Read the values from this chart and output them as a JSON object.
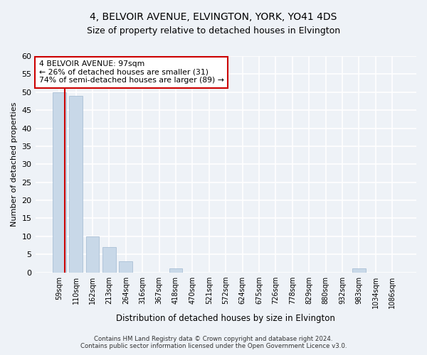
{
  "title": "4, BELVOIR AVENUE, ELVINGTON, YORK, YO41 4DS",
  "subtitle": "Size of property relative to detached houses in Elvington",
  "xlabel": "Distribution of detached houses by size in Elvington",
  "ylabel": "Number of detached properties",
  "categories": [
    "59sqm",
    "110sqm",
    "162sqm",
    "213sqm",
    "264sqm",
    "316sqm",
    "367sqm",
    "418sqm",
    "470sqm",
    "521sqm",
    "572sqm",
    "624sqm",
    "675sqm",
    "726sqm",
    "778sqm",
    "829sqm",
    "880sqm",
    "932sqm",
    "983sqm",
    "1034sqm",
    "1086sqm"
  ],
  "values": [
    50,
    49,
    10,
    7,
    3,
    0,
    0,
    1,
    0,
    0,
    0,
    0,
    0,
    0,
    0,
    0,
    0,
    0,
    1,
    0,
    0
  ],
  "bar_color": "#c8d8e8",
  "bar_edge_color": "#a0b8d0",
  "ylim": [
    0,
    60
  ],
  "yticks": [
    0,
    5,
    10,
    15,
    20,
    25,
    30,
    35,
    40,
    45,
    50,
    55,
    60
  ],
  "annotation_line1": "4 BELVOIR AVENUE: 97sqm",
  "annotation_line2": "← 26% of detached houses are smaller (31)",
  "annotation_line3": "74% of semi-detached houses are larger (89) →",
  "annotation_box_color": "#ffffff",
  "annotation_box_edge_color": "#cc0000",
  "vline_color": "#cc0000",
  "footer_line1": "Contains HM Land Registry data © Crown copyright and database right 2024.",
  "footer_line2": "Contains public sector information licensed under the Open Government Licence v3.0.",
  "background_color": "#eef2f7",
  "grid_color": "#ffffff",
  "title_fontsize": 10,
  "subtitle_fontsize": 9
}
